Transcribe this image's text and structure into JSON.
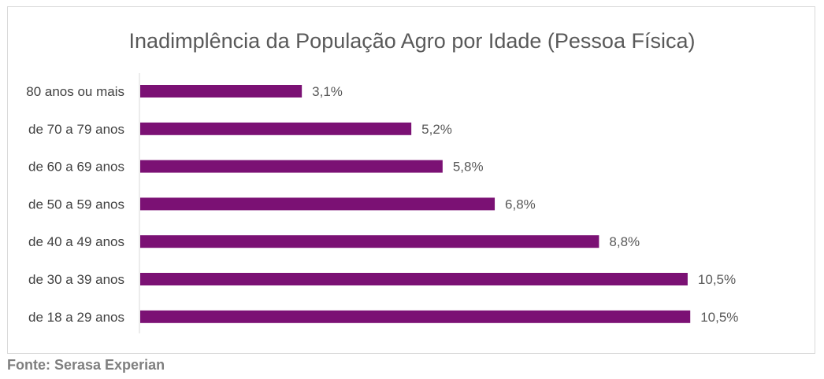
{
  "chart_data": {
    "type": "bar",
    "orientation": "horizontal",
    "title": "Inadimplência da População Agro por Idade (Pessoa Física)",
    "categories": [
      "80 anos ou mais",
      "de 70 a 79 anos",
      "de 60 a 69 anos",
      "de 50 a 59 anos",
      "de 40 a 49 anos",
      "de 30 a 39 anos",
      "de 18 a 29 anos"
    ],
    "values": [
      3.1,
      5.2,
      5.8,
      6.8,
      8.8,
      10.5,
      10.55
    ],
    "value_labels": [
      "3,1%",
      "5,2%",
      "5,8%",
      "6,8%",
      "8,8%",
      "10,5%",
      "10,5%"
    ],
    "unit": "%",
    "xlim": [
      0,
      11
    ],
    "grid": false,
    "legend": "none",
    "bar_color": "#7b1174"
  },
  "footer": {
    "source": "Fonte: Serasa Experian"
  }
}
